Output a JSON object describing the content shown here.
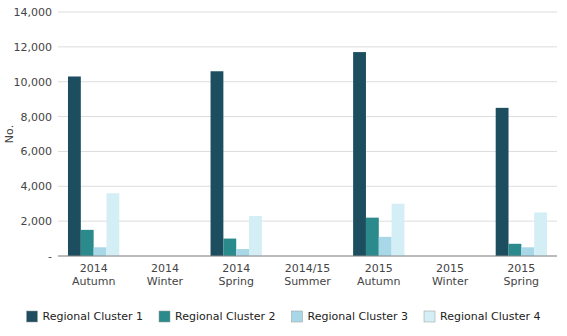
{
  "chart_data": {
    "type": "bar",
    "categories": [
      "2014\nAutumn",
      "2014\nWinter",
      "2014\nSpring",
      "2014/15\nSummer",
      "2015\nAutumn",
      "2015\nWinter",
      "2015\nSpring"
    ],
    "series": [
      {
        "name": "Regional Cluster 1",
        "color": "#1d4e5f",
        "values": [
          10300,
          0,
          10600,
          0,
          11700,
          0,
          8500
        ]
      },
      {
        "name": "Regional Cluster 2",
        "color": "#2a8a8c",
        "values": [
          1500,
          0,
          1000,
          0,
          2200,
          0,
          700
        ]
      },
      {
        "name": "Regional Cluster 3",
        "color": "#a8d8e8",
        "values": [
          500,
          0,
          400,
          0,
          1100,
          0,
          500
        ]
      },
      {
        "name": "Regional Cluster 4",
        "color": "#d4eef5",
        "values": [
          3600,
          0,
          2300,
          0,
          3000,
          0,
          2500
        ]
      }
    ],
    "ylabel": "No.",
    "ylim": [
      0,
      14000
    ],
    "yticks": [
      {
        "value": 0,
        "label": "-"
      },
      {
        "value": 2000,
        "label": "2,000"
      },
      {
        "value": 4000,
        "label": "4,000"
      },
      {
        "value": 6000,
        "label": "6,000"
      },
      {
        "value": 8000,
        "label": "8,000"
      },
      {
        "value": 10000,
        "label": "10,000"
      },
      {
        "value": 12000,
        "label": "12,000"
      },
      {
        "value": 14000,
        "label": "14,000"
      }
    ],
    "grid": true,
    "legend": "bottom"
  }
}
